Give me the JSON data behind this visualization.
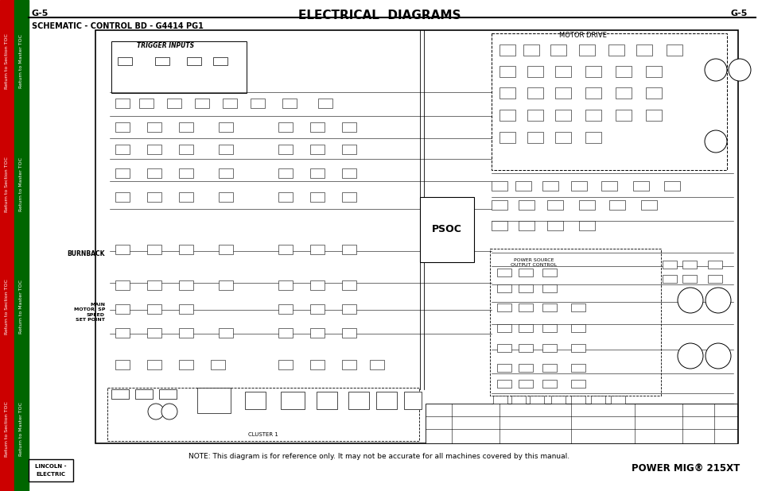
{
  "page_bg": "#ffffff",
  "border_left_red": "#cc0000",
  "border_left_green": "#006600",
  "page_label_left": "G-5",
  "page_label_right": "G-5",
  "page_title": "ELECTRICAL  DIAGRAMS",
  "schematic_label": "SCHEMATIC - CONTROL BD - G4414 PG1",
  "note_text": "NOTE: This diagram is for reference only. It may not be accurate for all machines covered by this manual.",
  "brand_text": "POWER MIG® 215XT",
  "motor_drive_label": "MOTOR DRIVE",
  "psoc_label": "PSOC",
  "trigger_inputs_label": "TRIGGER INPUTS",
  "burnback_label": "BURNBACK",
  "main_motor_label": "MAIN\nMOTOR  SP\nSPEED\nSET POINT",
  "cluster1_label": "CLUSTER 1",
  "power_source_label": "POWER SOURCE\nOUTPUT CONTROL",
  "fig_width": 9.54,
  "fig_height": 6.18,
  "dpi": 100
}
